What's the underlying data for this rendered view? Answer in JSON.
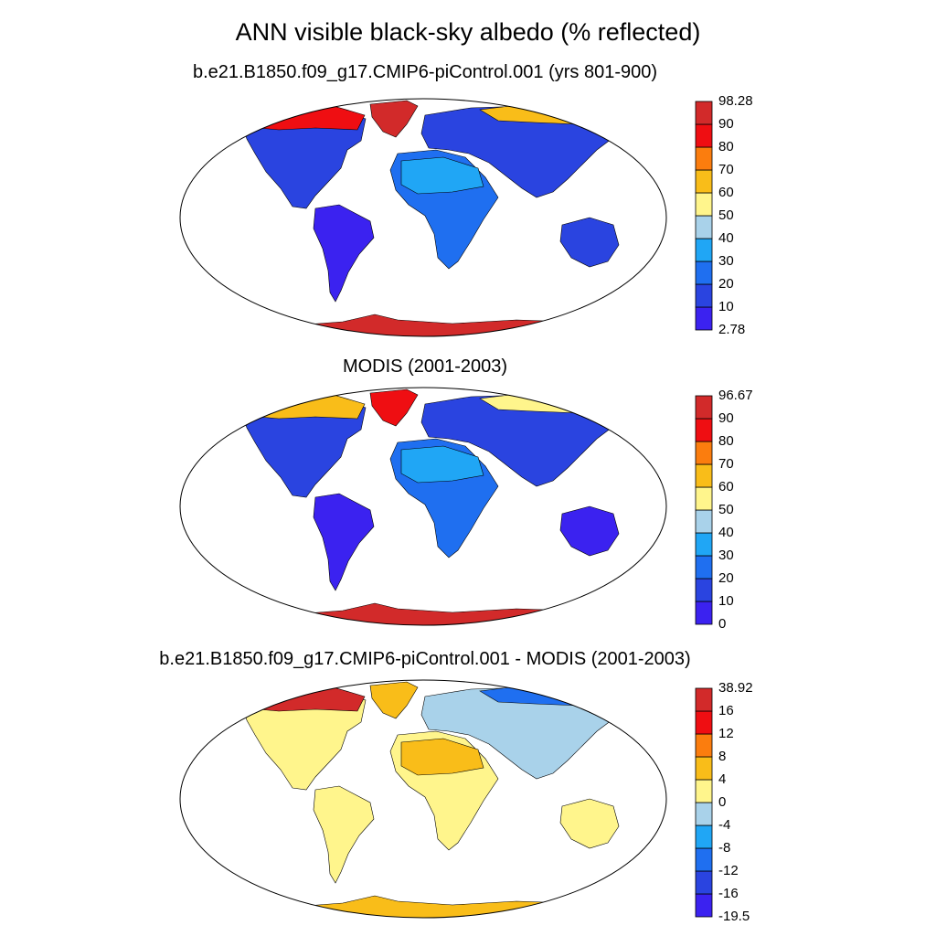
{
  "title": "ANN visible black-sky albedo (% reflected)",
  "colors": {
    "ocean": "#ffffff",
    "outline": "#000000"
  },
  "panels": [
    {
      "name": "model",
      "title": "b.e21.B1850.f09_g17.CMIP6-piControl.001 (yrs 801-900)",
      "palette": [
        "#3b22f0",
        "#2a44e0",
        "#1f6ff0",
        "#20a6f5",
        "#a9d2ea",
        "#fff58c",
        "#f9bd19",
        "#fb7d0e",
        "#ef0e12",
        "#d22a2a"
      ],
      "labels": [
        "98.28",
        "90",
        "80",
        "70",
        "60",
        "50",
        "40",
        "30",
        "20",
        "10",
        "2.78"
      ],
      "regions": {
        "antarctica": 9,
        "greenland": 9,
        "north_america": 1,
        "canada_arctic": 8,
        "south_america": 0,
        "africa": 2,
        "sahara": 3,
        "eurasia": 1,
        "siberia_north": 6,
        "australia": 1
      }
    },
    {
      "name": "obs",
      "title": "MODIS (2001-2003)",
      "palette": [
        "#3b22f0",
        "#2a44e0",
        "#1f6ff0",
        "#20a6f5",
        "#a9d2ea",
        "#fff58c",
        "#f9bd19",
        "#fb7d0e",
        "#ef0e12",
        "#d22a2a"
      ],
      "labels": [
        "96.67",
        "90",
        "80",
        "70",
        "60",
        "50",
        "40",
        "30",
        "20",
        "10",
        "0"
      ],
      "regions": {
        "antarctica": 9,
        "greenland": 8,
        "north_america": 1,
        "canada_arctic": 6,
        "south_america": 0,
        "africa": 2,
        "sahara": 3,
        "eurasia": 1,
        "siberia_north": 5,
        "australia": 0
      }
    },
    {
      "name": "diff",
      "title": "b.e21.B1850.f09_g17.CMIP6-piControl.001 - MODIS (2001-2003)",
      "palette": [
        "#3b22f0",
        "#2a44e0",
        "#1f6ff0",
        "#20a6f5",
        "#a9d2ea",
        "#fff58c",
        "#f9bd19",
        "#fb7d0e",
        "#ef0e12",
        "#d22a2a"
      ],
      "labels": [
        "38.92",
        "16",
        "12",
        "8",
        "4",
        "0",
        "-4",
        "-8",
        "-12",
        "-16",
        "-19.5"
      ],
      "regions": {
        "antarctica": 6,
        "greenland": 6,
        "north_america": 5,
        "canada_arctic": 9,
        "south_america": 5,
        "africa": 5,
        "sahara": 6,
        "eurasia": 4,
        "siberia_north": 2,
        "australia": 5
      }
    }
  ]
}
